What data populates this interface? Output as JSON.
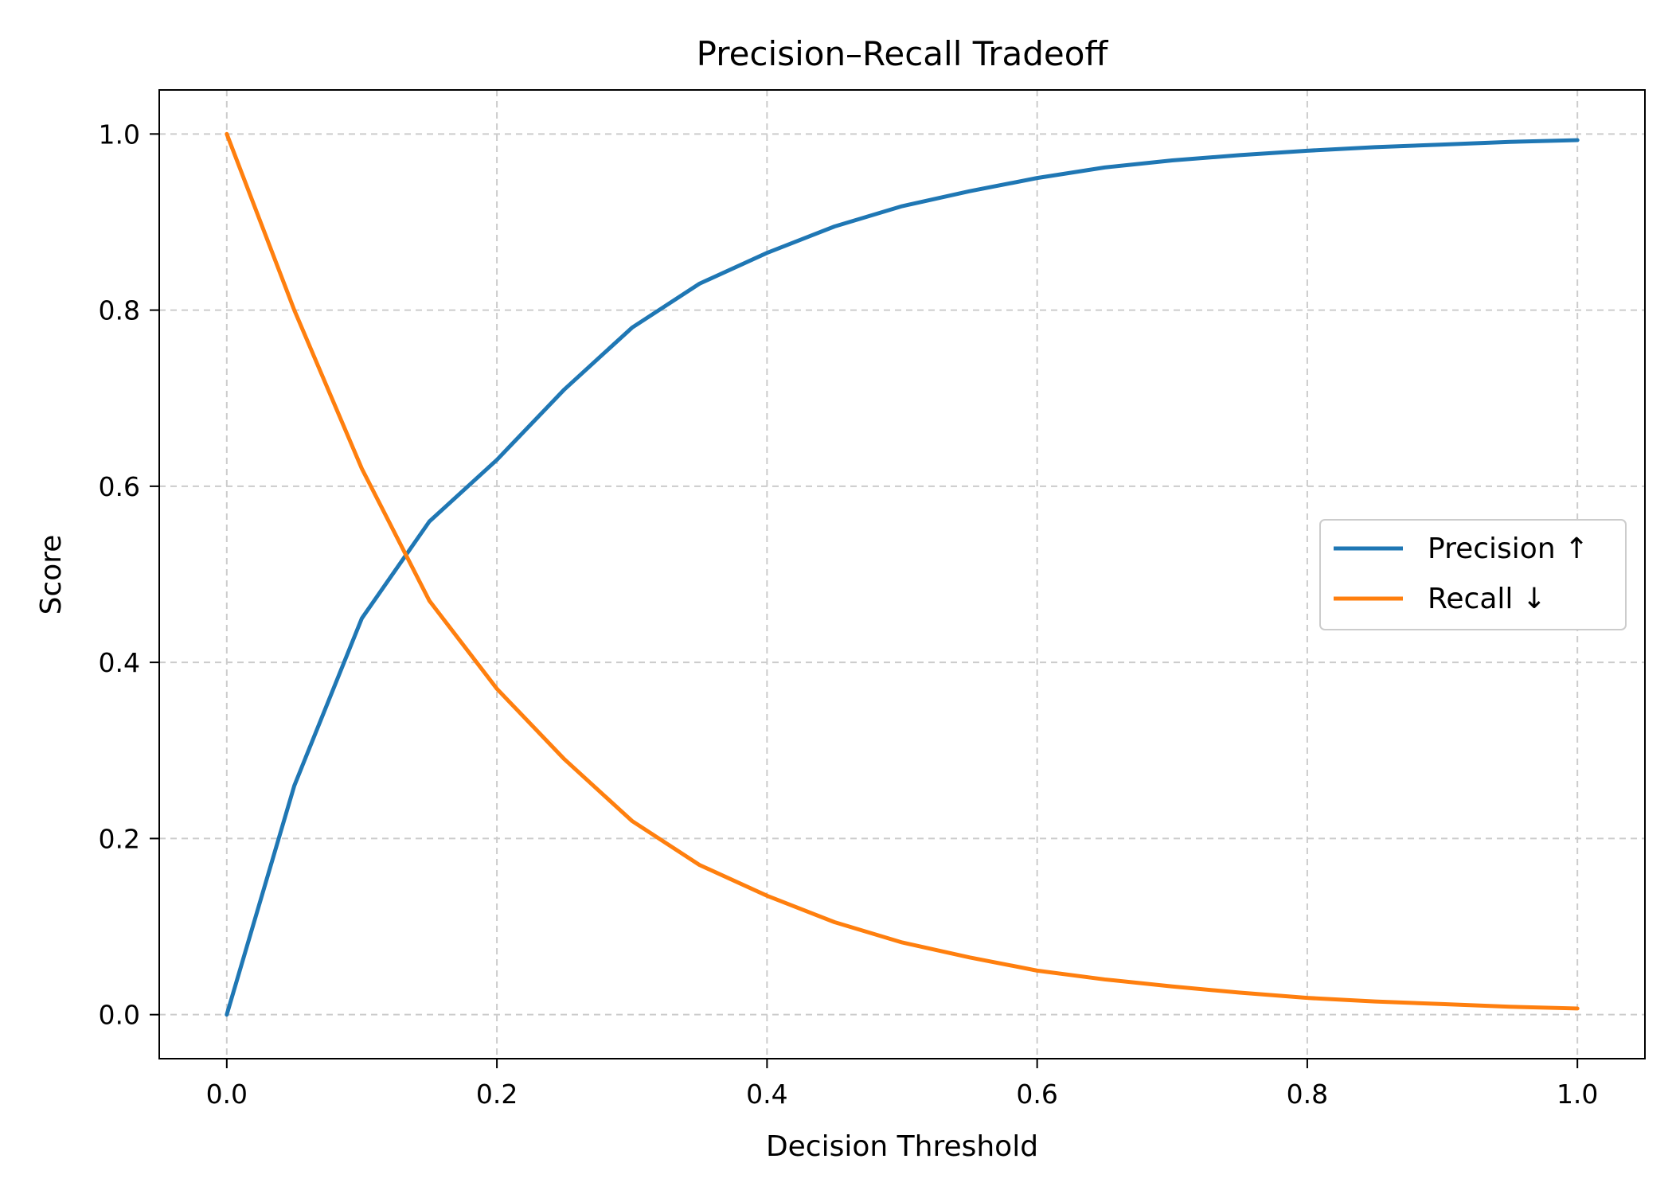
{
  "chart_data": {
    "type": "line",
    "title": "Precision–Recall Tradeoff",
    "xlabel": "Decision Threshold",
    "ylabel": "Score",
    "xlim": [
      -0.05,
      1.05
    ],
    "ylim": [
      -0.05,
      1.05
    ],
    "xticks": [
      "0.0",
      "0.2",
      "0.4",
      "0.6",
      "0.8",
      "1.0"
    ],
    "yticks": [
      "0.0",
      "0.2",
      "0.4",
      "0.6",
      "0.8",
      "1.0"
    ],
    "grid": true,
    "legend_position": "center-right",
    "x": [
      0,
      0.05,
      0.1,
      0.15,
      0.2,
      0.25,
      0.3,
      0.35,
      0.4,
      0.45,
      0.5,
      0.55,
      0.6,
      0.65,
      0.7,
      0.75,
      0.8,
      0.85,
      0.9,
      0.95,
      1.0
    ],
    "series": [
      {
        "name": "Precision ↑",
        "color": "#1f77b4",
        "values": [
          0.0,
          0.26,
          0.45,
          0.56,
          0.63,
          0.71,
          0.78,
          0.83,
          0.865,
          0.895,
          0.918,
          0.935,
          0.95,
          0.962,
          0.97,
          0.976,
          0.981,
          0.985,
          0.988,
          0.991,
          0.993
        ]
      },
      {
        "name": "Recall ↓",
        "color": "#ff7f0e",
        "values": [
          1.0,
          0.8,
          0.62,
          0.47,
          0.37,
          0.29,
          0.22,
          0.17,
          0.135,
          0.105,
          0.082,
          0.065,
          0.05,
          0.04,
          0.032,
          0.025,
          0.019,
          0.015,
          0.012,
          0.009,
          0.007
        ]
      }
    ]
  }
}
